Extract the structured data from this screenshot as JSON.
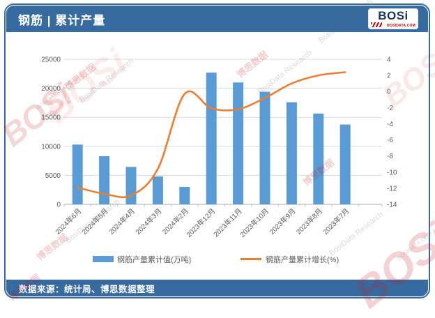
{
  "header": {
    "title": "钢筋 | 累计产量",
    "logo": {
      "text": "BOSi",
      "subtext": "BOSIDATA.COM"
    }
  },
  "footer": {
    "source": "数据来源：统计局、博思数据整理"
  },
  "watermarks": {
    "logo": "BOSi",
    "brand_cn": "博思数据",
    "brand_en": "BosiData Research",
    "domain": "BOSIDATA.COM"
  },
  "chart_data": {
    "type": "bar+line",
    "title": "钢筋 | 累计产量",
    "categories": [
      "2024年6月",
      "2024年5月",
      "2024年4月",
      "2024年3月",
      "2024年2月",
      "2023年12月",
      "2023年11月",
      "2023年10月",
      "2023年9月",
      "2023年8月",
      "2023年7月"
    ],
    "series": [
      {
        "name": "钢筋产量累计值(万吨)",
        "type": "bar",
        "axis": "left",
        "color": "#5B9BD5",
        "values": [
          10300,
          8300,
          6450,
          4800,
          3000,
          22700,
          21000,
          19400,
          17600,
          15650,
          13750
        ]
      },
      {
        "name": "钢筋产量累计增长(%)",
        "type": "line",
        "axis": "right",
        "color": "#ED7D31",
        "values": [
          -11.9,
          -12.7,
          -12.9,
          -9.6,
          -0.3,
          -2.1,
          -2.2,
          -0.8,
          1.0,
          2.0,
          2.4
        ]
      }
    ],
    "left_axis": {
      "min": 0,
      "max": 25000,
      "step": 5000,
      "ticks": [
        0,
        5000,
        10000,
        15000,
        20000,
        25000
      ]
    },
    "right_axis": {
      "min": -14,
      "max": 4,
      "step": 2,
      "ticks": [
        4,
        2,
        0,
        -2,
        -4,
        -6,
        -8,
        -10,
        -12,
        -14
      ]
    },
    "grid": true,
    "legend_position": "bottom"
  }
}
